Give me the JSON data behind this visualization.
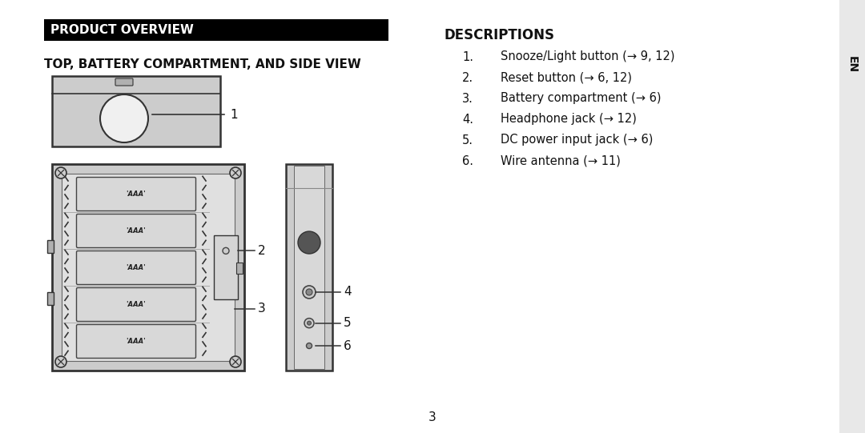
{
  "bg_color": "#ffffff",
  "sidebar_color": "#e8e8e8",
  "header_bg": "#000000",
  "header_text": "PRODUCT OVERVIEW",
  "header_text_color": "#ffffff",
  "subtitle": "TOP, BATTERY COMPARTMENT, AND SIDE VIEW",
  "desc_title": "DESCRIPTIONS",
  "descriptions": [
    "Snooze/Light button (→ 9, 12)",
    "Reset button (→ 6, 12)",
    "Battery compartment (→ 6)",
    "Headphone jack (→ 12)",
    "DC power input jack (→ 6)",
    "Wire antenna (→ 11)"
  ],
  "page_number": "3",
  "sidebar_label": "EN",
  "diagram_gray_light": "#cccccc",
  "diagram_gray_mid": "#b0b0b0",
  "diagram_gray_dark": "#888888",
  "diagram_edge": "#333333",
  "diagram_white": "#f0f0f0"
}
